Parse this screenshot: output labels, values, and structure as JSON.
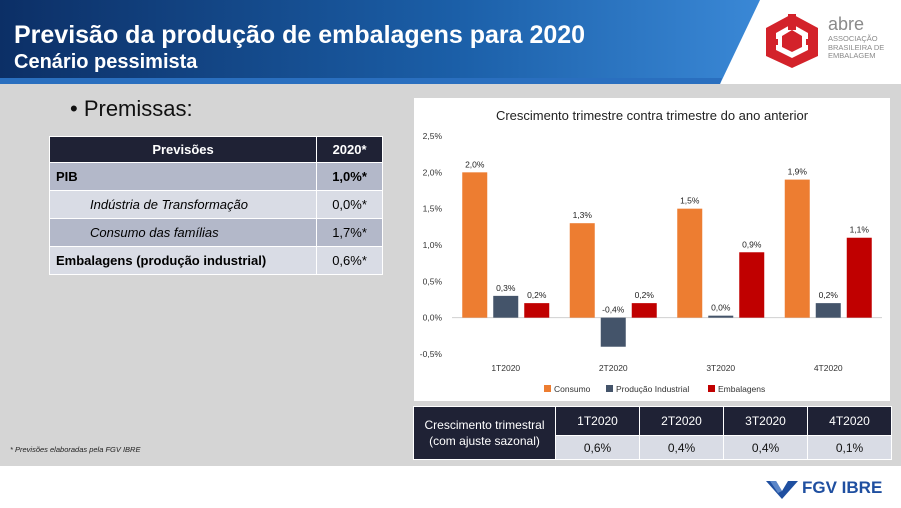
{
  "header": {
    "title": "Previsão da produção de embalagens para 2020",
    "subtitle": "Cenário pessimista"
  },
  "logo": {
    "name": "abre",
    "subtitle": "ASSOCIAÇÃO BRASILEIRA DE EMBALAGEM",
    "icon": "abre-logo-icon"
  },
  "bullet": "• Premissas:",
  "premissas": {
    "headers": [
      "Previsões",
      "2020*"
    ],
    "rows": [
      {
        "label": "PIB",
        "value": "1,0%*"
      },
      {
        "label": "Indústria de Transformação",
        "value": "0,0%*"
      },
      {
        "label": "Consumo das famílias",
        "value": "1,7%*"
      },
      {
        "label": "Embalagens (produção industrial)",
        "value": "0,6%*"
      }
    ]
  },
  "footnote": "* Previsões elaboradas pela FGV IBRE",
  "chart_data": {
    "type": "bar",
    "title": "Crescimento trimestre contra trimestre do ano anterior",
    "categories": [
      "1T2020",
      "2T2020",
      "3T2020",
      "4T2020"
    ],
    "series": [
      {
        "name": "Consumo",
        "color": "#ed7d31",
        "values": [
          2.0,
          1.3,
          1.5,
          1.9
        ],
        "labels": [
          "2,0%",
          "1,3%",
          "1,5%",
          "1,9%"
        ]
      },
      {
        "name": "Produção Industrial",
        "color": "#44546a",
        "values": [
          0.3,
          -0.4,
          0.0,
          0.2
        ],
        "labels": [
          "0,3%",
          "-0,4%",
          "0,0%",
          "0,2%"
        ]
      },
      {
        "name": "Embalagens",
        "color": "#c00000",
        "values": [
          0.2,
          0.2,
          0.9,
          1.1
        ],
        "labels": [
          "0,2%",
          "0,2%",
          "0,9%",
          "1,1%"
        ]
      }
    ],
    "ylim": [
      -0.5,
      2.5
    ],
    "yticks": [
      "2,5%",
      "2,0%",
      "1,5%",
      "1,0%",
      "0,5%",
      "0,0%",
      "-0,5%"
    ],
    "legend_position": "bottom",
    "grid": false
  },
  "growth": {
    "label": "Crescimento trimestral (com ajuste sazonal)",
    "quarters": [
      "1T2020",
      "2T2020",
      "3T2020",
      "4T2020"
    ],
    "values": [
      "0,6%",
      "0,4%",
      "0,4%",
      "0,1%"
    ]
  },
  "footer": {
    "brand": "FGV IBRE",
    "icon": "fgv-logo-icon"
  }
}
